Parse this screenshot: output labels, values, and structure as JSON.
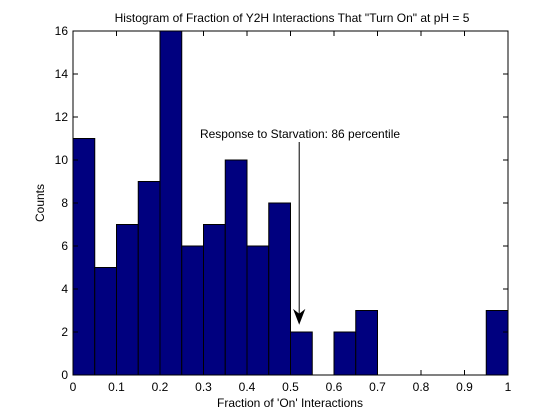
{
  "chart_data": {
    "type": "bar",
    "title": "Histogram of Fraction of Y2H Interactions That \"Turn On\" at pH = 5",
    "xlabel": "Fraction of 'On' Interactions",
    "ylabel": "Counts",
    "xlim": [
      0,
      1
    ],
    "ylim": [
      0,
      16
    ],
    "xticks": [
      0,
      0.1,
      0.2,
      0.3,
      0.4,
      0.5,
      0.6,
      0.7,
      0.8,
      0.9,
      1
    ],
    "xtick_labels": [
      "0",
      "0.1",
      "0.2",
      "0.3",
      "0.4",
      "0.5",
      "0.6",
      "0.7",
      "0.8",
      "0.9",
      "1"
    ],
    "yticks": [
      0,
      2,
      4,
      6,
      8,
      10,
      12,
      14,
      16
    ],
    "ytick_labels": [
      "0",
      "2",
      "4",
      "6",
      "8",
      "10",
      "12",
      "14",
      "16"
    ],
    "bin_width": 0.05,
    "bins": [
      {
        "x": 0.025,
        "count": 11
      },
      {
        "x": 0.075,
        "count": 5
      },
      {
        "x": 0.125,
        "count": 7
      },
      {
        "x": 0.175,
        "count": 9
      },
      {
        "x": 0.225,
        "count": 16
      },
      {
        "x": 0.275,
        "count": 6
      },
      {
        "x": 0.325,
        "count": 7
      },
      {
        "x": 0.375,
        "count": 10
      },
      {
        "x": 0.425,
        "count": 6
      },
      {
        "x": 0.475,
        "count": 8
      },
      {
        "x": 0.525,
        "count": 2
      },
      {
        "x": 0.575,
        "count": 0
      },
      {
        "x": 0.625,
        "count": 2
      },
      {
        "x": 0.675,
        "count": 3
      },
      {
        "x": 0.725,
        "count": 0
      },
      {
        "x": 0.775,
        "count": 0
      },
      {
        "x": 0.825,
        "count": 0
      },
      {
        "x": 0.875,
        "count": 0
      },
      {
        "x": 0.925,
        "count": 0
      },
      {
        "x": 0.975,
        "count": 3
      }
    ],
    "annotation": {
      "text": "Response to Starvation:  86 percentile",
      "arrow_x": 0.52,
      "arrow_tip_y": 2.4
    },
    "bar_color": "#00007F",
    "edge_color": "#000000",
    "grid": false
  }
}
